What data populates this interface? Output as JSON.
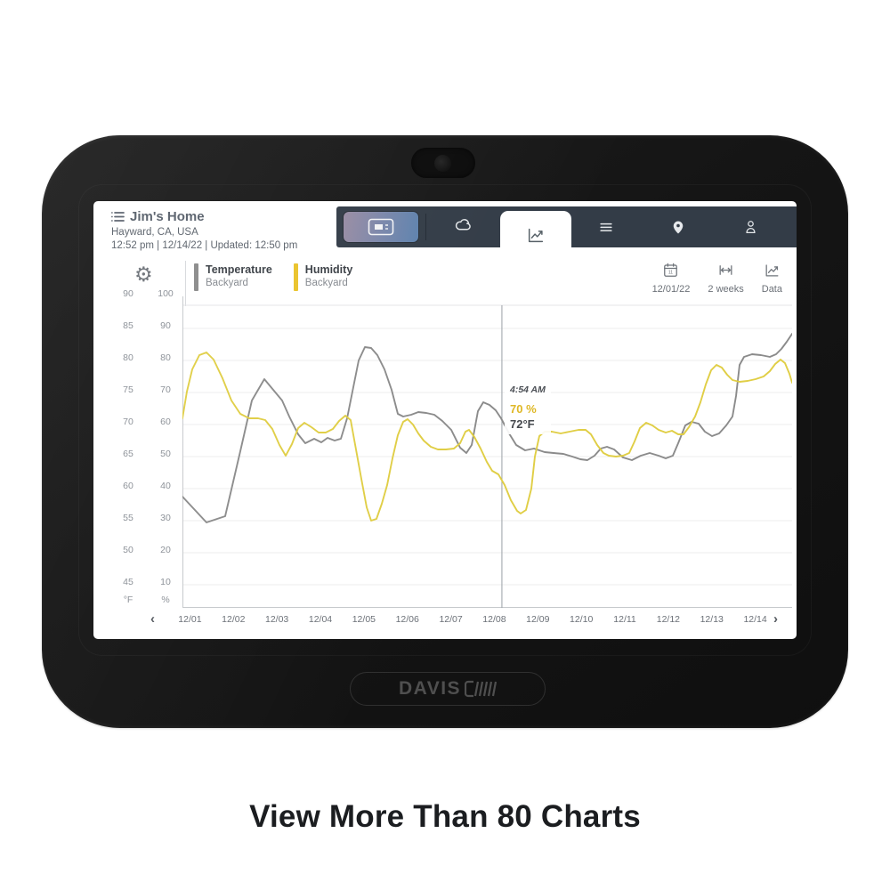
{
  "caption": "View More Than 80 Charts",
  "device": {
    "brand_logo": "DAVIS"
  },
  "screen": {
    "header": {
      "title": "Jim's Home",
      "location": "Hayward, CA, USA",
      "status_line": "12:52 pm | 12/14/22 | Updated: 12:50 pm"
    },
    "navbar": {
      "tabs": [
        {
          "id": "current-conditions",
          "icon": "console-display-icon",
          "active": false
        },
        {
          "id": "weather",
          "icon": "cloud-icon",
          "active": false
        },
        {
          "id": "charts",
          "icon": "line-chart-icon",
          "active": true
        },
        {
          "id": "readings",
          "icon": "list-icon",
          "active": false
        },
        {
          "id": "map",
          "icon": "location-pin-icon",
          "active": false
        },
        {
          "id": "account",
          "icon": "account-icon",
          "active": false
        }
      ]
    },
    "toolbar": {
      "settings_icon": "gear-icon",
      "settings_glyph": "⚙",
      "legend": [
        {
          "name": "Temperature",
          "station": "Backyard",
          "color": "#8b8b8b"
        },
        {
          "name": "Humidity",
          "station": "Backyard",
          "color": "#eac32b"
        }
      ],
      "controls": [
        {
          "icon": "calendar-icon",
          "label": "12/01/22"
        },
        {
          "icon": "timespan-icon",
          "label": "2 weeks"
        },
        {
          "icon": "line-chart-icon",
          "label": "Data"
        }
      ]
    },
    "tooltip": {
      "time": "4:54 AM",
      "humidity": "70 %",
      "temperature": "72°F"
    },
    "chart": {
      "y_axis_f": [
        "90",
        "85",
        "80",
        "75",
        "70",
        "65",
        "60",
        "55",
        "50",
        "45"
      ],
      "y_axis_pct": [
        "100",
        "90",
        "80",
        "70",
        "60",
        "50",
        "40",
        "30",
        "20",
        "10"
      ],
      "y_unit_f": "°F",
      "y_unit_pct": "%",
      "x_labels": [
        "12/01",
        "12/02",
        "12/03",
        "12/04",
        "12/05",
        "12/06",
        "12/07",
        "12/08",
        "12/09",
        "12/10",
        "12/11",
        "12/12",
        "12/13",
        "12/14"
      ],
      "prev_arrow": "‹",
      "next_arrow": "›"
    }
  },
  "chart_data": {
    "type": "line",
    "x": [
      "12/01",
      "12/02",
      "12/03",
      "12/04",
      "12/05",
      "12/06",
      "12/07",
      "12/08",
      "12/09",
      "12/10",
      "12/11",
      "12/12",
      "12/13",
      "12/14"
    ],
    "left_axis": {
      "label": "°F",
      "range": [
        45,
        90
      ]
    },
    "right_axis": {
      "label": "%",
      "range": [
        10,
        100
      ]
    },
    "grid": true,
    "legend_position": "top-left",
    "plot_size": [
      685,
      350
    ],
    "cursor": {
      "x_frac": 0.524,
      "time": "4:54 AM",
      "humidity_pct": 70,
      "temperature_f": 72
    },
    "series": [
      {
        "name": "Temperature (Backyard)",
        "axis": "°F",
        "color": "#8b8b8b",
        "daily_values_f": [
          58,
          61,
          75,
          67,
          82,
          72,
          69,
          72,
          66,
          65,
          65,
          65,
          68,
          81
        ],
        "path_points": [
          [
            0,
            225
          ],
          [
            27,
            254
          ],
          [
            48,
            247
          ],
          [
            65,
            174
          ],
          [
            78,
            117
          ],
          [
            92,
            93
          ],
          [
            102,
            105
          ],
          [
            112,
            117
          ],
          [
            120,
            135
          ],
          [
            130,
            155
          ],
          [
            138,
            165
          ],
          [
            148,
            160
          ],
          [
            156,
            164
          ],
          [
            163,
            159
          ],
          [
            171,
            162
          ],
          [
            178,
            160
          ],
          [
            185,
            137
          ],
          [
            191,
            107
          ],
          [
            198,
            72
          ],
          [
            205,
            57
          ],
          [
            212,
            58
          ],
          [
            219,
            66
          ],
          [
            227,
            82
          ],
          [
            235,
            105
          ],
          [
            242,
            132
          ],
          [
            248,
            135
          ],
          [
            257,
            133
          ],
          [
            265,
            130
          ],
          [
            274,
            131
          ],
          [
            283,
            133
          ],
          [
            292,
            140
          ],
          [
            302,
            150
          ],
          [
            312,
            170
          ],
          [
            319,
            176
          ],
          [
            325,
            167
          ],
          [
            332,
            129
          ],
          [
            338,
            119
          ],
          [
            345,
            122
          ],
          [
            352,
            128
          ],
          [
            358,
            137
          ],
          [
            367,
            154
          ],
          [
            375,
            167
          ],
          [
            385,
            173
          ],
          [
            395,
            171
          ],
          [
            407,
            175
          ],
          [
            417,
            176
          ],
          [
            428,
            177
          ],
          [
            438,
            180
          ],
          [
            447,
            183
          ],
          [
            455,
            184
          ],
          [
            463,
            179
          ],
          [
            470,
            171
          ],
          [
            477,
            169
          ],
          [
            485,
            172
          ],
          [
            495,
            181
          ],
          [
            505,
            184
          ],
          [
            515,
            179
          ],
          [
            525,
            176
          ],
          [
            535,
            179
          ],
          [
            543,
            182
          ],
          [
            551,
            179
          ],
          [
            557,
            165
          ],
          [
            565,
            145
          ],
          [
            572,
            141
          ],
          [
            580,
            143
          ],
          [
            587,
            152
          ],
          [
            595,
            157
          ],
          [
            603,
            154
          ],
          [
            611,
            145
          ],
          [
            618,
            135
          ],
          [
            622,
            112
          ],
          [
            626,
            77
          ],
          [
            631,
            68
          ],
          [
            640,
            65
          ],
          [
            650,
            66
          ],
          [
            660,
            68
          ],
          [
            667,
            65
          ],
          [
            673,
            59
          ],
          [
            679,
            51
          ],
          [
            685,
            42
          ]
        ]
      },
      {
        "name": "Humidity (Backyard)",
        "axis": "%",
        "color": "#e0ce45",
        "daily_values_pct": [
          72,
          67,
          55,
          58,
          38,
          62,
          52,
          47,
          56,
          58,
          50,
          58,
          77,
          74
        ],
        "path_points": [
          [
            0,
            137
          ],
          [
            5,
            107
          ],
          [
            11,
            82
          ],
          [
            19,
            66
          ],
          [
            27,
            63
          ],
          [
            35,
            71
          ],
          [
            45,
            92
          ],
          [
            55,
            117
          ],
          [
            65,
            132
          ],
          [
            75,
            137
          ],
          [
            85,
            137
          ],
          [
            93,
            139
          ],
          [
            101,
            149
          ],
          [
            109,
            167
          ],
          [
            116,
            179
          ],
          [
            123,
            166
          ],
          [
            130,
            148
          ],
          [
            137,
            142
          ],
          [
            145,
            147
          ],
          [
            153,
            153
          ],
          [
            161,
            153
          ],
          [
            169,
            149
          ],
          [
            176,
            140
          ],
          [
            183,
            134
          ],
          [
            189,
            139
          ],
          [
            195,
            172
          ],
          [
            201,
            205
          ],
          [
            207,
            237
          ],
          [
            212,
            252
          ],
          [
            218,
            250
          ],
          [
            224,
            233
          ],
          [
            230,
            212
          ],
          [
            236,
            182
          ],
          [
            242,
            156
          ],
          [
            248,
            141
          ],
          [
            253,
            138
          ],
          [
            259,
            144
          ],
          [
            265,
            154
          ],
          [
            271,
            162
          ],
          [
            279,
            169
          ],
          [
            287,
            172
          ],
          [
            296,
            172
          ],
          [
            305,
            171
          ],
          [
            312,
            165
          ],
          [
            318,
            152
          ],
          [
            322,
            150
          ],
          [
            328,
            158
          ],
          [
            335,
            171
          ],
          [
            342,
            186
          ],
          [
            348,
            196
          ],
          [
            355,
            200
          ],
          [
            362,
            212
          ],
          [
            369,
            229
          ],
          [
            376,
            241
          ],
          [
            380,
            244
          ],
          [
            386,
            240
          ],
          [
            392,
            216
          ],
          [
            396,
            180
          ],
          [
            401,
            157
          ],
          [
            407,
            152
          ],
          [
            415,
            152
          ],
          [
            425,
            154
          ],
          [
            435,
            152
          ],
          [
            445,
            150
          ],
          [
            453,
            150
          ],
          [
            459,
            155
          ],
          [
            466,
            167
          ],
          [
            473,
            176
          ],
          [
            479,
            179
          ],
          [
            487,
            180
          ],
          [
            495,
            179
          ],
          [
            502,
            176
          ],
          [
            508,
            163
          ],
          [
            514,
            148
          ],
          [
            521,
            142
          ],
          [
            528,
            145
          ],
          [
            535,
            150
          ],
          [
            543,
            153
          ],
          [
            550,
            151
          ],
          [
            557,
            155
          ],
          [
            563,
            155
          ],
          [
            569,
            147
          ],
          [
            576,
            135
          ],
          [
            582,
            119
          ],
          [
            588,
            99
          ],
          [
            594,
            83
          ],
          [
            600,
            77
          ],
          [
            606,
            80
          ],
          [
            612,
            88
          ],
          [
            618,
            94
          ],
          [
            626,
            96
          ],
          [
            635,
            95
          ],
          [
            644,
            93
          ],
          [
            653,
            90
          ],
          [
            660,
            84
          ],
          [
            666,
            76
          ],
          [
            672,
            71
          ],
          [
            677,
            75
          ],
          [
            682,
            87
          ],
          [
            685,
            97
          ]
        ]
      }
    ]
  }
}
